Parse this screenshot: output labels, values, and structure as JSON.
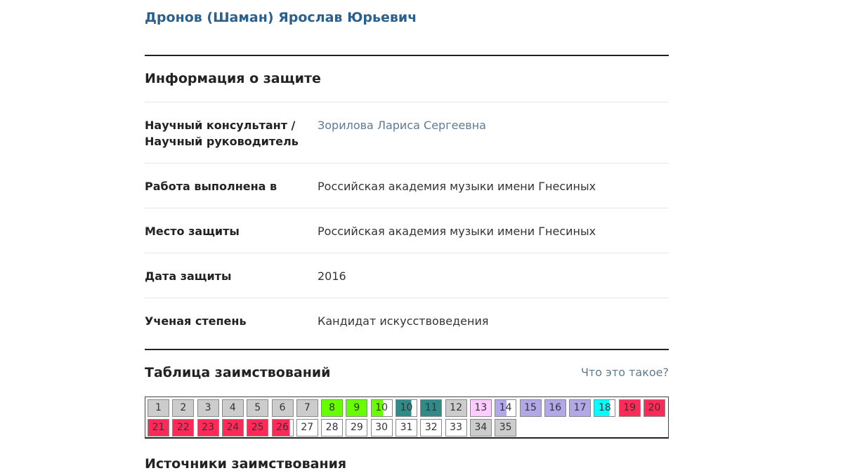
{
  "author": {
    "name": "Дронов (Шаман) Ярослав Юрьевич"
  },
  "defense": {
    "title": "Информация о защите",
    "rows": [
      {
        "label": "Научный консультант / Научный руководитель",
        "value": "Зорилова Лариса Сергеевна",
        "link": true
      },
      {
        "label": "Работа выполнена в",
        "value": "Российская академия музыки имени Гнесиных"
      },
      {
        "label": "Место защиты",
        "value": "Российская академия музыки имени Гнесиных"
      },
      {
        "label": "Дата защиты",
        "value": "2016"
      },
      {
        "label": "Ученая степень",
        "value": "Кандидат искусствоведения"
      }
    ]
  },
  "borrowings": {
    "title": "Таблица заимствований",
    "help_link": "Что это такое?",
    "colors": {
      "gray": "#cccccc",
      "white": "#ffffff",
      "green": "#66ff00",
      "teal": "#2e8b87",
      "pink": "#ffccff",
      "lavender": "#b3a8e6",
      "cyan": "#00ffff",
      "red": "#ff2a58"
    },
    "cells": [
      {
        "label": "1",
        "color": "gray"
      },
      {
        "label": "2",
        "color": "gray"
      },
      {
        "label": "3",
        "color": "gray"
      },
      {
        "label": "4",
        "color": "gray"
      },
      {
        "label": "5",
        "color": "gray"
      },
      {
        "label": "6",
        "color": "gray"
      },
      {
        "label": "7",
        "color": "gray"
      },
      {
        "label": "8",
        "color": "green"
      },
      {
        "label": "9",
        "color": "green"
      },
      {
        "label": "10",
        "color": "green",
        "fill": 0.55
      },
      {
        "label": "10",
        "color": "teal",
        "fill": 0.75
      },
      {
        "label": "11",
        "color": "teal"
      },
      {
        "label": "12",
        "color": "gray"
      },
      {
        "label": "13",
        "color": "pink"
      },
      {
        "label": "14",
        "color": "lavender",
        "fill": 0.55
      },
      {
        "label": "15",
        "color": "lavender"
      },
      {
        "label": "16",
        "color": "lavender"
      },
      {
        "label": "17",
        "color": "lavender"
      },
      {
        "label": "18",
        "color": "cyan",
        "fill": 0.75
      },
      {
        "label": "19",
        "color": "red"
      },
      {
        "label": "20",
        "color": "red"
      },
      {
        "label": "21",
        "color": "red"
      },
      {
        "label": "22",
        "color": "red"
      },
      {
        "label": "23",
        "color": "red"
      },
      {
        "label": "24",
        "color": "red"
      },
      {
        "label": "25",
        "color": "red"
      },
      {
        "label": "26",
        "color": "red",
        "fill": 0.85
      },
      {
        "label": "27",
        "color": "white"
      },
      {
        "label": "28",
        "color": "white"
      },
      {
        "label": "29",
        "color": "white"
      },
      {
        "label": "30",
        "color": "white"
      },
      {
        "label": "31",
        "color": "white"
      },
      {
        "label": "32",
        "color": "white"
      },
      {
        "label": "33",
        "color": "white"
      },
      {
        "label": "34",
        "color": "gray"
      },
      {
        "label": "35",
        "color": "gray"
      }
    ]
  },
  "sources": {
    "title": "Источники заимствования"
  }
}
